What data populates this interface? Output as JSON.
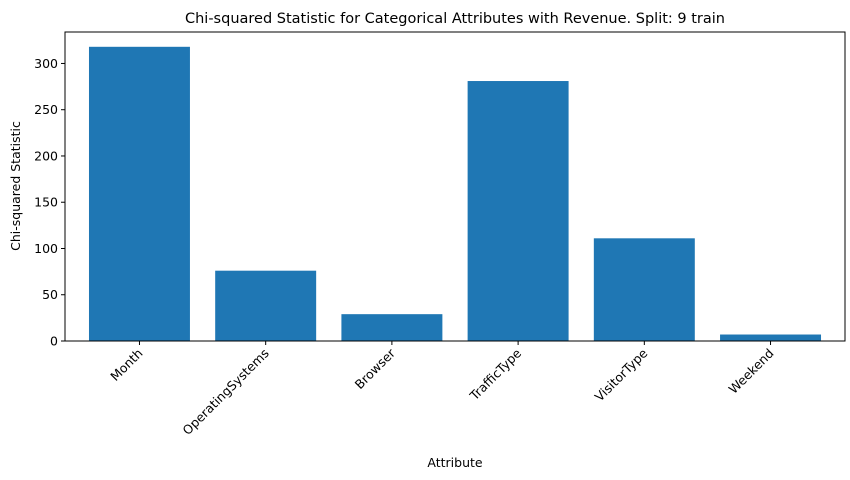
{
  "chart_data": {
    "type": "bar",
    "title": "Chi-squared Statistic for Categorical Attributes with Revenue. Split: 9 train",
    "xlabel": "Attribute",
    "ylabel": "Chi-squared Statistic",
    "categories": [
      "Month",
      "OperatingSystems",
      "Browser",
      "TrafficType",
      "VisitorType",
      "Weekend"
    ],
    "values": [
      318,
      76,
      29,
      281,
      111,
      7
    ],
    "ylim": [
      0,
      334
    ],
    "yticks": [
      0,
      50,
      100,
      150,
      200,
      250,
      300
    ],
    "bar_color": "#1f77b4",
    "grid": false,
    "legend": "none"
  }
}
